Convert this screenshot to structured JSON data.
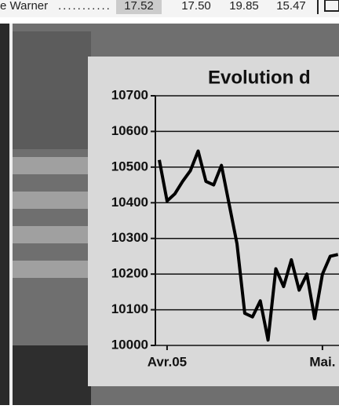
{
  "ticker_row": {
    "name": "e Warner",
    "values": [
      "17.52",
      "17.50",
      "19.85",
      "15.47"
    ]
  },
  "chart_data": {
    "type": "line",
    "title": "Evolution d",
    "categories": [
      null,
      "Avr.05",
      null,
      null,
      null,
      null,
      null,
      null,
      null,
      null,
      null,
      null,
      null,
      null,
      null,
      null,
      null,
      null,
      null,
      null,
      null,
      "Mai.",
      null,
      null
    ],
    "values": [
      10520,
      10405,
      10425,
      10460,
      10490,
      10545,
      10460,
      10450,
      10505,
      10395,
      10285,
      10090,
      10080,
      10125,
      10015,
      10215,
      10165,
      10240,
      10155,
      10200,
      10075,
      10200,
      10250,
      10255
    ],
    "color": "#000000",
    "ylim": [
      10000,
      10700
    ],
    "yticks": [
      10000,
      10100,
      10200,
      10300,
      10400,
      10500,
      10600,
      10700
    ],
    "grid": true
  }
}
